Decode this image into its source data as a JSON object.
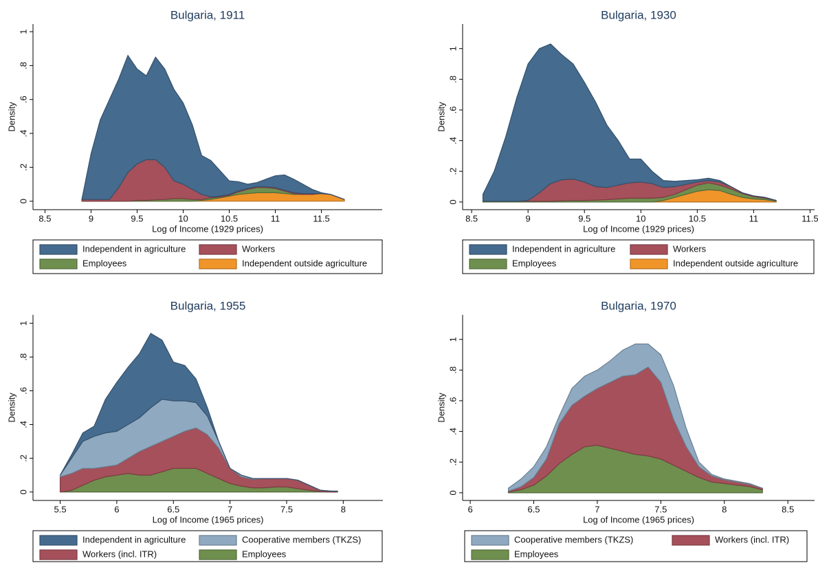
{
  "chart_data": [
    {
      "type": "area",
      "title": "Bulgaria, 1911",
      "xlabel": "Log of Income (1929 prices)",
      "ylabel": "Density",
      "x": [
        8.9,
        9.0,
        9.1,
        9.2,
        9.3,
        9.4,
        9.5,
        9.6,
        9.7,
        9.8,
        9.9,
        10.0,
        10.1,
        10.2,
        10.3,
        10.4,
        10.5,
        10.6,
        10.7,
        10.8,
        10.9,
        11.0,
        11.1,
        11.2,
        11.3,
        11.4,
        11.5,
        11.6,
        11.7,
        11.75
      ],
      "series": [
        {
          "name": "Independent in agriculture",
          "color": "#456b8e",
          "values": [
            0,
            0.27,
            0.47,
            0.59,
            0.64,
            0.69,
            0.56,
            0.495,
            0.605,
            0.58,
            0.54,
            0.48,
            0.38,
            0.23,
            0.215,
            0.15,
            0.08,
            0.055,
            0.025,
            0.025,
            0.045,
            0.07,
            0.09,
            0.08,
            0.055,
            0.025,
            0.005,
            0,
            0,
            0
          ]
        },
        {
          "name": "Workers",
          "color": "#a5505a",
          "values": [
            0.01,
            0.01,
            0.01,
            0.01,
            0.08,
            0.17,
            0.215,
            0.24,
            0.237,
            0.19,
            0.105,
            0.085,
            0.06,
            0.03,
            0.005,
            0.005,
            0.005,
            0.005,
            0.005,
            0.005,
            0.005,
            0.005,
            0.005,
            0.005,
            0.005,
            0.005,
            0,
            0,
            0,
            0
          ]
        },
        {
          "name": "Employees",
          "color": "#6f8f4e",
          "values": [
            0,
            0,
            0,
            0,
            0,
            0,
            0.005,
            0.005,
            0.008,
            0.01,
            0.015,
            0.015,
            0.01,
            0.005,
            0.01,
            0.005,
            0.005,
            0.015,
            0.025,
            0.03,
            0.03,
            0.025,
            0.015,
            0.005,
            0,
            0,
            0,
            0,
            0,
            0
          ]
        },
        {
          "name": "Independent outside agriculture",
          "color": "#f0952a",
          "values": [
            0,
            0,
            0,
            0,
            0,
            0,
            0,
            0,
            0,
            0,
            0,
            0,
            0,
            0.005,
            0.01,
            0.02,
            0.03,
            0.04,
            0.045,
            0.05,
            0.05,
            0.05,
            0.045,
            0.04,
            0.04,
            0.04,
            0.045,
            0.04,
            0.02,
            0.01
          ]
        }
      ],
      "xlim": [
        8.37,
        12.16
      ],
      "ylim": [
        -0.05,
        1.045
      ],
      "xticks": [
        8.5,
        9,
        9.5,
        10,
        10.5,
        11,
        11.5
      ],
      "yticks": [
        0,
        {
          "value": 0.2,
          "label": ".2"
        },
        {
          "value": 0.4,
          "label": ".4"
        },
        {
          "value": 0.6,
          "label": ".6"
        },
        {
          "value": 0.8,
          "label": ".8"
        },
        1
      ]
    },
    {
      "type": "area",
      "title": "Bulgaria, 1930",
      "xlabel": "Log of Income (1929 prices)",
      "ylabel": "Density",
      "x": [
        8.6,
        8.7,
        8.8,
        8.9,
        9.0,
        9.1,
        9.2,
        9.3,
        9.4,
        9.5,
        9.6,
        9.7,
        9.8,
        9.9,
        10.0,
        10.1,
        10.2,
        10.3,
        10.4,
        10.5,
        10.6,
        10.7,
        10.8,
        10.9,
        11.0,
        11.1,
        11.2
      ],
      "series": [
        {
          "name": "Independent in agriculture",
          "color": "#456b8e",
          "values": [
            0.045,
            0.195,
            0.415,
            0.675,
            0.89,
            0.94,
            0.91,
            0.815,
            0.75,
            0.65,
            0.55,
            0.405,
            0.29,
            0.155,
            0.15,
            0.08,
            0.045,
            0.035,
            0.025,
            0.015,
            0.015,
            0.01,
            0,
            0,
            0,
            0,
            0
          ]
        },
        {
          "name": "Workers",
          "color": "#a5505a",
          "values": [
            0,
            0,
            0,
            0,
            0.005,
            0.055,
            0.115,
            0.137,
            0.14,
            0.12,
            0.088,
            0.08,
            0.09,
            0.1,
            0.105,
            0.095,
            0.065,
            0.05,
            0.035,
            0.02,
            0.015,
            0.02,
            0.015,
            0.005,
            0.005,
            0.005,
            0
          ]
        },
        {
          "name": "Employees",
          "color": "#6f8f4e",
          "values": [
            0.005,
            0.005,
            0.005,
            0.005,
            0.005,
            0.005,
            0.005,
            0.008,
            0.01,
            0.01,
            0.012,
            0.015,
            0.02,
            0.025,
            0.025,
            0.025,
            0.02,
            0.02,
            0.03,
            0.04,
            0.045,
            0.035,
            0.035,
            0.025,
            0.015,
            0.01,
            0.005
          ]
        },
        {
          "name": "Independent outside agriculture",
          "color": "#f0952a",
          "values": [
            0,
            0,
            0,
            0,
            0,
            0,
            0,
            0,
            0,
            0,
            0,
            0,
            0,
            0,
            0,
            0,
            0.01,
            0.03,
            0.05,
            0.07,
            0.08,
            0.075,
            0.05,
            0.03,
            0.02,
            0.015,
            0.005
          ]
        }
      ],
      "xlim": [
        8.42,
        11.54
      ],
      "ylim": [
        -0.05,
        1.16
      ],
      "xticks": [
        8.5,
        9,
        9.5,
        10,
        10.5,
        11,
        11.5
      ],
      "yticks": [
        0,
        {
          "value": 0.2,
          "label": ".2"
        },
        {
          "value": 0.4,
          "label": ".4"
        },
        {
          "value": 0.6,
          "label": ".6"
        },
        {
          "value": 0.8,
          "label": ".8"
        },
        1
      ]
    },
    {
      "type": "area",
      "title": "Bulgaria, 1955",
      "xlabel": "Log of Income (1965 prices)",
      "ylabel": "Density",
      "x": [
        5.5,
        5.6,
        5.7,
        5.8,
        5.9,
        6.0,
        6.1,
        6.2,
        6.3,
        6.4,
        6.5,
        6.6,
        6.7,
        6.8,
        6.9,
        7.0,
        7.1,
        7.2,
        7.3,
        7.4,
        7.5,
        7.6,
        7.7,
        7.8,
        7.9,
        7.95
      ],
      "series": [
        {
          "name": "Independent in agriculture",
          "color": "#456b8e",
          "values": [
            0,
            0.02,
            0.05,
            0.06,
            0.2,
            0.29,
            0.34,
            0.38,
            0.44,
            0.35,
            0.23,
            0.21,
            0.14,
            0.05,
            0,
            0,
            0,
            0,
            0,
            0,
            0,
            0,
            0,
            0,
            0,
            0
          ]
        },
        {
          "name": "Cooperative members (TKZS)",
          "color": "#8fa9c1",
          "values": [
            0.01,
            0.09,
            0.16,
            0.19,
            0.2,
            0.2,
            0.2,
            0.2,
            0.23,
            0.25,
            0.21,
            0.18,
            0.15,
            0.11,
            0.04,
            0,
            0.01,
            0.005,
            0,
            0,
            0,
            0,
            0,
            0,
            0,
            0
          ]
        },
        {
          "name": "Workers (incl. ITR)",
          "color": "#a5505a",
          "values": [
            0.09,
            0.1,
            0.1,
            0.07,
            0.06,
            0.06,
            0.09,
            0.14,
            0.17,
            0.18,
            0.19,
            0.22,
            0.24,
            0.23,
            0.18,
            0.09,
            0.055,
            0.05,
            0.055,
            0.05,
            0.05,
            0.05,
            0.03,
            0.007,
            0.005,
            0.005
          ]
        },
        {
          "name": "Employees",
          "color": "#6f8f4e",
          "values": [
            0,
            0.01,
            0.04,
            0.07,
            0.09,
            0.1,
            0.11,
            0.1,
            0.1,
            0.12,
            0.14,
            0.14,
            0.14,
            0.11,
            0.08,
            0.05,
            0.035,
            0.025,
            0.025,
            0.03,
            0.03,
            0.02,
            0.01,
            0.003,
            0,
            0
          ]
        }
      ],
      "xlim": [
        5.26,
        8.35
      ],
      "ylim": [
        -0.05,
        1.05
      ],
      "xticks": [
        5.5,
        6,
        6.5,
        7,
        7.5,
        8
      ],
      "yticks": [
        0,
        {
          "value": 0.2,
          "label": ".2"
        },
        {
          "value": 0.4,
          "label": ".4"
        },
        {
          "value": 0.6,
          "label": ".6"
        },
        {
          "value": 0.8,
          "label": ".8"
        },
        1
      ]
    },
    {
      "type": "area",
      "title": "Bulgaria, 1970",
      "xlabel": "Log of Income (1965 prices)",
      "ylabel": "Density",
      "x": [
        6.3,
        6.4,
        6.5,
        6.6,
        6.7,
        6.8,
        6.9,
        7.0,
        7.1,
        7.2,
        7.3,
        7.4,
        7.5,
        7.6,
        7.7,
        7.8,
        7.9,
        8.0,
        8.1,
        8.2,
        8.3
      ],
      "series": [
        {
          "name": "Cooperative members (TKZS)",
          "color": "#8fa9c1",
          "values": [
            0.02,
            0.05,
            0.07,
            0.08,
            0.05,
            0.11,
            0.13,
            0.12,
            0.14,
            0.17,
            0.2,
            0.15,
            0.18,
            0.22,
            0.12,
            0.03,
            0.01,
            0.005,
            0.005,
            0.005,
            0
          ]
        },
        {
          "name": "Workers (incl. ITR)",
          "color": "#a5505a",
          "values": [
            0.005,
            0.02,
            0.05,
            0.11,
            0.26,
            0.32,
            0.33,
            0.37,
            0.43,
            0.49,
            0.52,
            0.58,
            0.5,
            0.3,
            0.16,
            0.07,
            0.04,
            0.025,
            0.02,
            0.015,
            0.01
          ]
        },
        {
          "name": "Employees",
          "color": "#6f8f4e",
          "values": [
            0.005,
            0.02,
            0.05,
            0.11,
            0.19,
            0.25,
            0.3,
            0.31,
            0.29,
            0.27,
            0.25,
            0.24,
            0.22,
            0.18,
            0.14,
            0.1,
            0.07,
            0.06,
            0.05,
            0.04,
            0.02
          ]
        }
      ],
      "xlim": [
        5.94,
        8.71
      ],
      "ylim": [
        -0.05,
        1.16
      ],
      "xticks": [
        6,
        6.5,
        7,
        7.5,
        8,
        8.5
      ],
      "yticks": [
        0,
        {
          "value": 0.2,
          "label": ".2"
        },
        {
          "value": 0.4,
          "label": ".4"
        },
        {
          "value": 0.6,
          "label": ".6"
        },
        {
          "value": 0.8,
          "label": ".8"
        },
        1
      ]
    }
  ]
}
